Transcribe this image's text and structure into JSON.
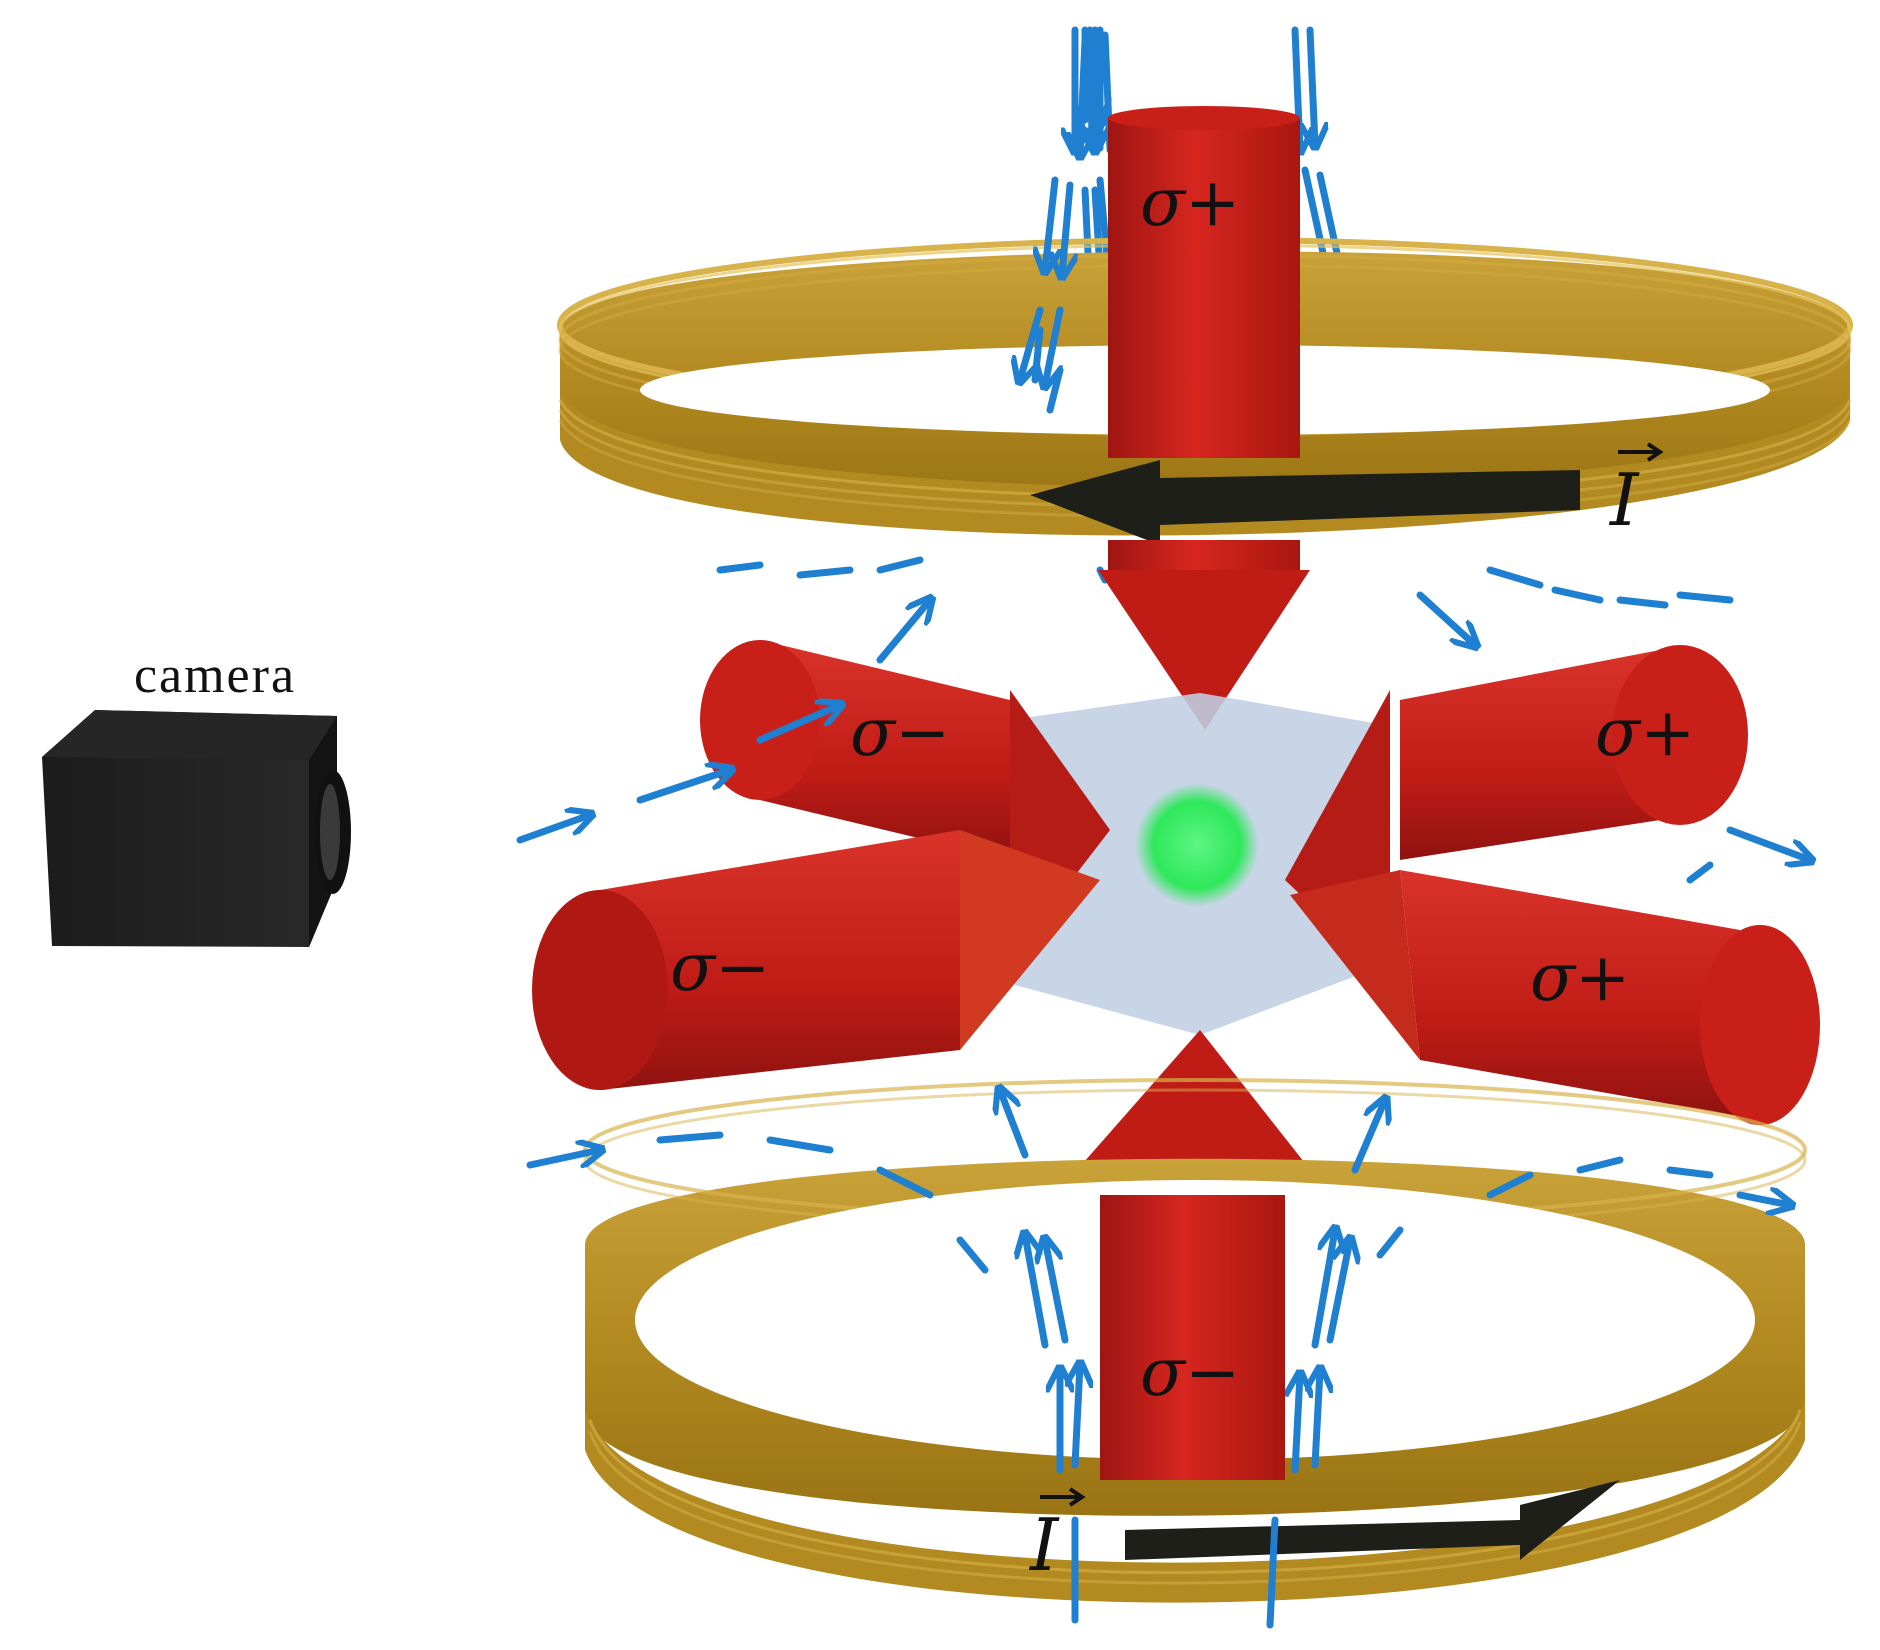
{
  "camera": {
    "label": "camera"
  },
  "beams": {
    "top": "σ+",
    "bottom": "σ−",
    "left_back": "σ−",
    "left_front": "σ−",
    "right_back": "σ+",
    "right_front": "σ+"
  },
  "coils": {
    "top_current": "I",
    "bottom_current": "I"
  },
  "colors": {
    "beam": "#c4201c",
    "coil": "#b8901e",
    "field_lines": "#1f7fd0",
    "atom_cloud": "#2ee85a",
    "arrow": "#1a1a1a"
  }
}
